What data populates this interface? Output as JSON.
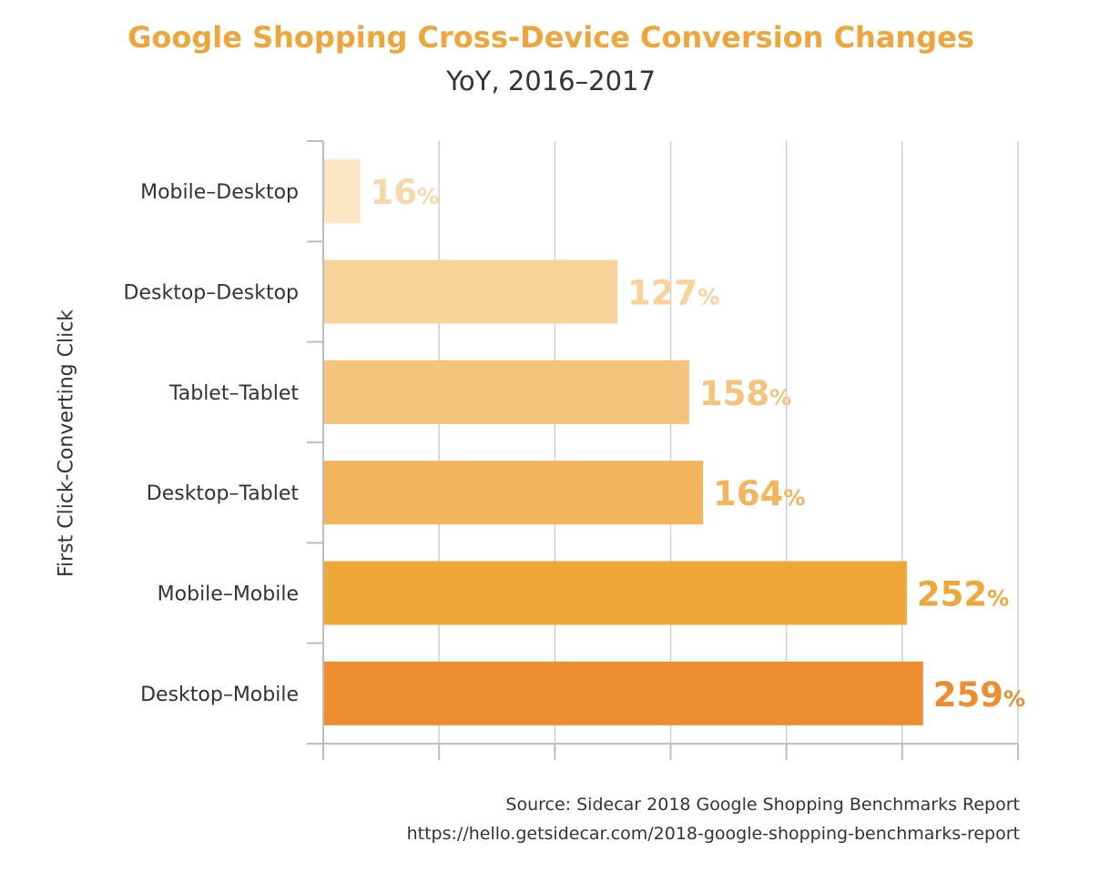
{
  "chart_data": {
    "type": "bar",
    "orientation": "horizontal",
    "title": "Google Shopping Cross-Device Conversion Changes",
    "subtitle": "YoY, 2016–2017",
    "ylabel": "First Click-Converting Click",
    "xlabel": "",
    "value_suffix": "%",
    "categories": [
      "Mobile–Desktop",
      "Desktop–Desktop",
      "Tablet–Tablet",
      "Desktop–Tablet",
      "Mobile–Mobile",
      "Desktop–Mobile"
    ],
    "values": [
      16,
      127,
      158,
      164,
      252,
      259
    ],
    "xlim": [
      0,
      300
    ],
    "grid": true,
    "colors": [
      "#fbe6c4",
      "#f7d39a",
      "#f5c47c",
      "#f3b55c",
      "#f0a73a",
      "#ee8d30"
    ]
  },
  "source": {
    "line1": "Source: Sidecar 2018 Google Shopping Benchmarks Report",
    "line2": "https://hello.getsidecar.com/2018-google-shopping-benchmarks-report"
  }
}
